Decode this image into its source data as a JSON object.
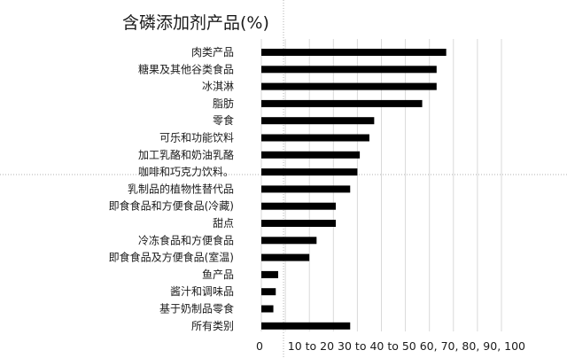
{
  "chart_data": {
    "type": "bar",
    "orientation": "horizontal",
    "title": "含磷添加剂产品(%)",
    "categories": [
      "肉类产品",
      "糖果及其他谷类食品",
      "冰淇淋",
      "脂肪",
      "零食",
      "可乐和功能饮料",
      "加工乳酪和奶油乳酪",
      "咖啡和巧克力饮料。",
      "乳制品的植物性替代品",
      "即食食品和方便食品(冷藏)",
      "甜点",
      "冷冻食品和方便食品",
      "即食食品及方便食品(室温)",
      "鱼产品",
      "酱汁和调味品",
      "基于奶制品零食",
      "所有类别"
    ],
    "values": [
      77,
      73,
      73,
      67,
      47,
      45,
      41,
      40,
      37,
      31,
      31,
      23,
      20,
      7,
      6,
      5,
      37
    ],
    "xlim": [
      0,
      100
    ],
    "x_tick_label": "0       10 to 20 30 to 40 to 50 60, 70, 80, 90, 100",
    "grid": true,
    "legend": "none"
  }
}
